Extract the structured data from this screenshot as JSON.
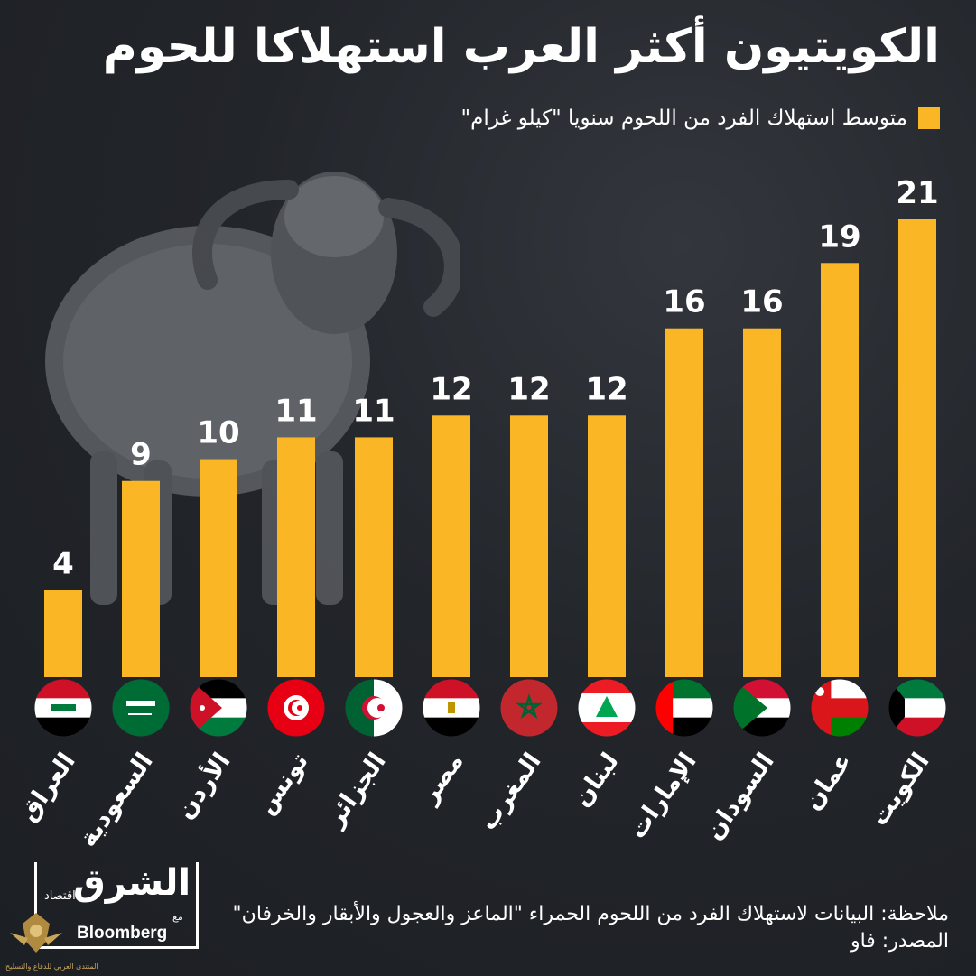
{
  "title": "الكويتيون أكثر العرب استهلاكا للحوم",
  "legend": "متوسط استهلاك الفرد من اللحوم سنويا \"كيلو غرام\"",
  "colors": {
    "bar": "#fbb626",
    "background": "#22252a"
  },
  "note": "ملاحظة: البيانات لاستهلاك الفرد من اللحوم الحمراء \"الماعز والعجول والأبقار والخرفان\"",
  "source": "المصدر: فاو",
  "logo": {
    "main": "الشرق",
    "sub": "اقتصاد",
    "with": "مع",
    "partner": "Bloomberg"
  },
  "emblem_text": "المنتدى العربي للدفاع والتسليح",
  "chart_data": {
    "type": "bar",
    "title": "الكويتيون أكثر العرب استهلاكا للحوم",
    "categories": [
      "العراق",
      "السعودية",
      "الأردن",
      "تونس",
      "الجزائر",
      "مصر",
      "المغرب",
      "لبنان",
      "الإمارات",
      "السودان",
      "عمان",
      "الكويت"
    ],
    "flags": [
      "iraq",
      "saudi",
      "jordan",
      "tunisia",
      "algeria",
      "egypt",
      "morocco",
      "lebanon",
      "uae",
      "sudan",
      "oman",
      "kuwait"
    ],
    "values": [
      4,
      9,
      10,
      11,
      11,
      12,
      12,
      12,
      16,
      16,
      19,
      21
    ],
    "ylim": [
      0,
      21
    ],
    "legend_position": "top-right",
    "grid": false,
    "series": [
      {
        "name": "متوسط استهلاك الفرد من اللحوم سنويا \"كيلو غرام\"",
        "values": [
          4,
          9,
          10,
          11,
          11,
          12,
          12,
          12,
          16,
          16,
          19,
          21
        ]
      }
    ]
  }
}
